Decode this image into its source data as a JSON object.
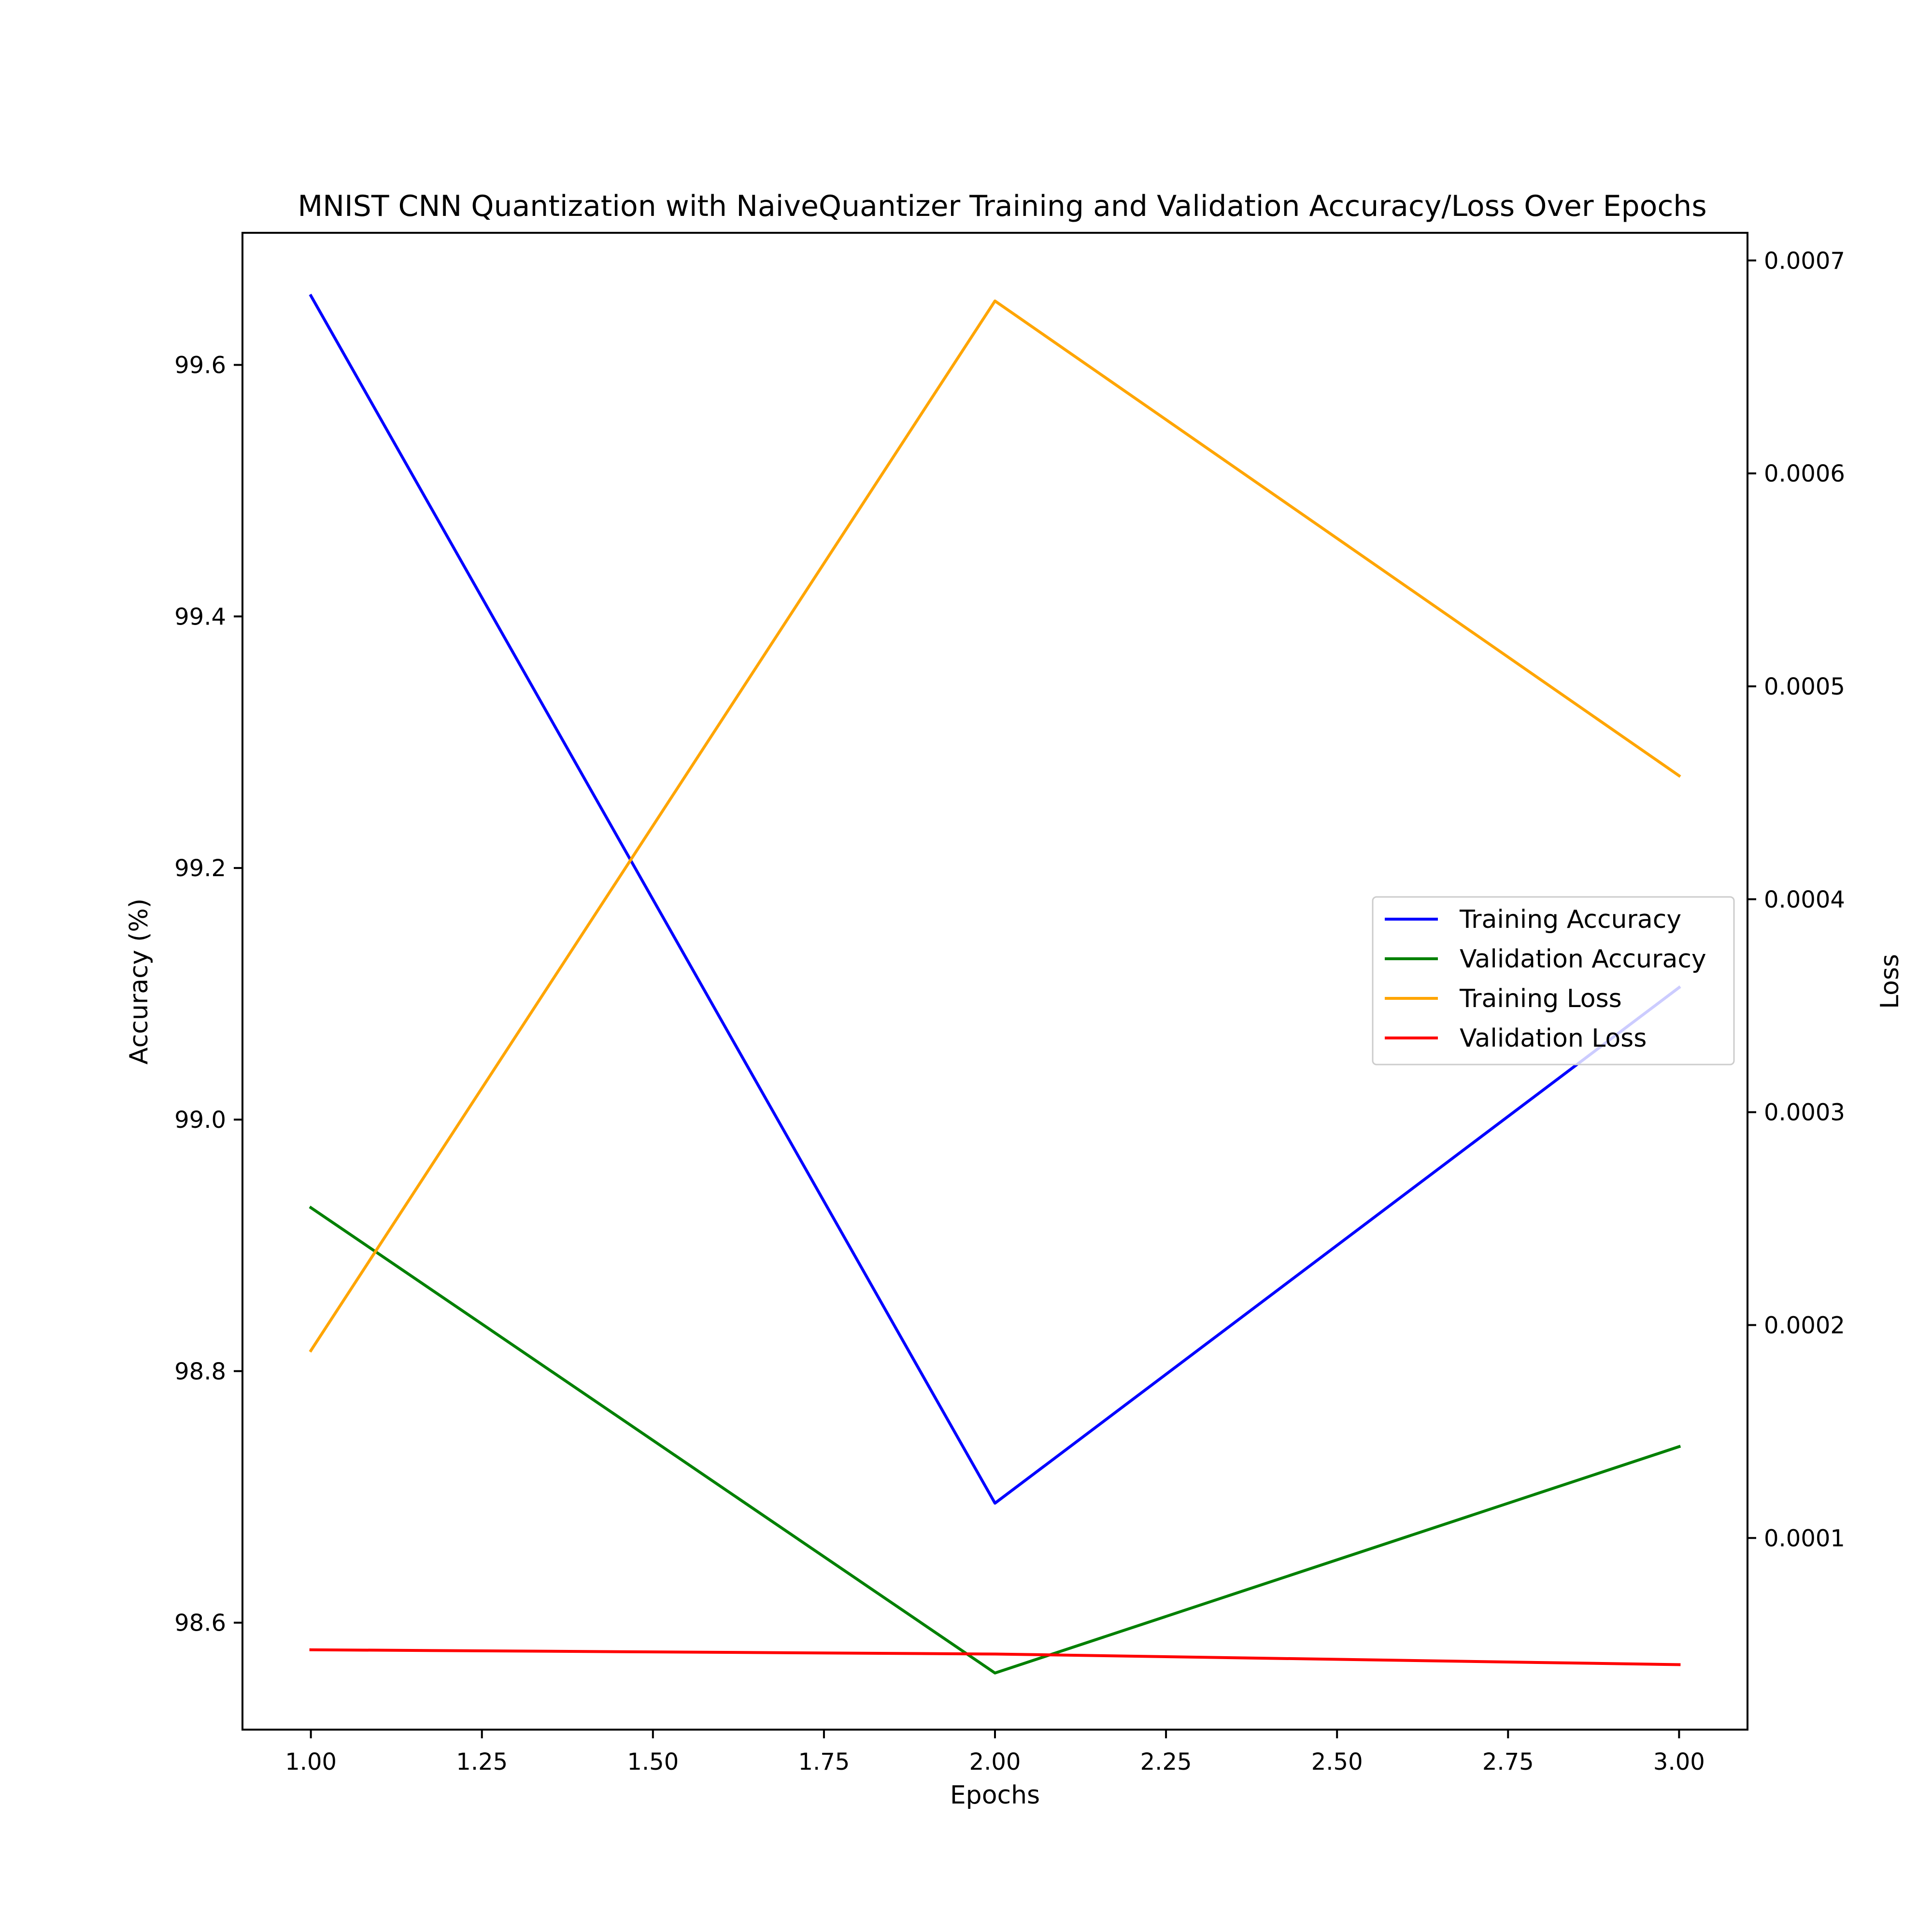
{
  "chart_data": {
    "type": "line",
    "title": "MNIST CNN Quantization with NaiveQuantizer Training and Validation Accuracy/Loss Over Epochs",
    "xlabel": "Epochs",
    "ylabel_left": "Accuracy (%)",
    "ylabel_right": "Loss",
    "x": [
      1.0,
      2.0,
      3.0
    ],
    "xlim": [
      0.9,
      3.1
    ],
    "ylim_left": [
      98.515,
      99.705
    ],
    "ylim_right": [
      1e-05,
      0.000713
    ],
    "x_ticks": [
      "1.00",
      "1.25",
      "1.50",
      "1.75",
      "2.00",
      "2.25",
      "2.50",
      "2.75",
      "3.00"
    ],
    "y_ticks_left": [
      "98.6",
      "98.8",
      "99.0",
      "99.2",
      "99.4",
      "99.6"
    ],
    "y_ticks_right": [
      "0.0001",
      "0.0002",
      "0.0003",
      "0.0004",
      "0.0005",
      "0.0006",
      "0.0007"
    ],
    "legend_position": "center-right",
    "grid": false,
    "series": [
      {
        "name": "Training Accuracy",
        "axis": "left",
        "color": "#0000ff",
        "values": [
          99.655,
          98.695,
          99.105
        ]
      },
      {
        "name": "Validation Accuracy",
        "axis": "left",
        "color": "#008000",
        "values": [
          98.93,
          98.56,
          98.74
        ]
      },
      {
        "name": "Training Loss",
        "axis": "right",
        "color": "#ffa500",
        "values": [
          0.000188,
          0.000681,
          0.000458
        ]
      },
      {
        "name": "Validation Loss",
        "axis": "right",
        "color": "#ff0000",
        "values": [
          4.75e-05,
          4.55e-05,
          4.05e-05
        ]
      }
    ]
  }
}
